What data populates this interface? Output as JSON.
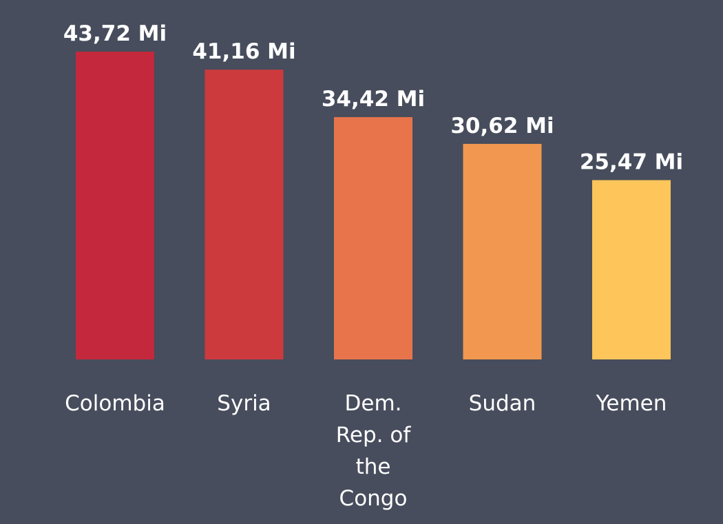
{
  "chart_data": {
    "type": "bar",
    "categories": [
      "Colombia",
      "Syria",
      "Dem. Rep. of the Congo",
      "Sudan",
      "Yemen"
    ],
    "category_lines": [
      [
        "Colombia"
      ],
      [
        "Syria"
      ],
      [
        "Dem.",
        "Rep. of",
        "the",
        "Congo"
      ],
      [
        "Sudan"
      ],
      [
        "Yemen"
      ]
    ],
    "values": [
      43.72,
      41.16,
      34.42,
      30.62,
      25.47
    ],
    "value_labels": [
      "43,72 Mi",
      "41,16 Mi",
      "34,42 Mi",
      "30,62 Mi",
      "25,47 Mi"
    ],
    "colors": [
      "#c3283c",
      "#cc3a3e",
      "#e8744c",
      "#f2974f",
      "#fec55a"
    ],
    "background": "#474d5c",
    "ylim": [
      0,
      43.72
    ],
    "grid": false,
    "legend": "none",
    "title": "",
    "xlabel": "",
    "ylabel": ""
  }
}
